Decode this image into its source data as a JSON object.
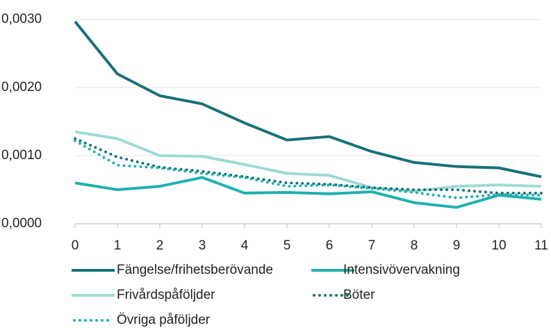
{
  "chart_data": {
    "type": "line",
    "x": [
      0,
      1,
      2,
      3,
      4,
      5,
      6,
      7,
      8,
      9,
      10,
      11
    ],
    "xlim": [
      0,
      11
    ],
    "xticks": [
      0,
      1,
      2,
      3,
      4,
      5,
      6,
      7,
      8,
      9,
      10,
      11
    ],
    "ylim": [
      0,
      0.003
    ],
    "yticks": [
      {
        "value": 0,
        "label": "0,0000"
      },
      {
        "value": 0.001,
        "label": "0,0010"
      },
      {
        "value": 0.002,
        "label": "0,0020"
      },
      {
        "value": 0.003,
        "label": "0,0030"
      }
    ],
    "grid": true,
    "legend": "bottom",
    "series": [
      {
        "name": "Fängelse/frihetsberövande",
        "color": "#17717a",
        "style": "solid",
        "values": [
          0.00297,
          0.0022,
          0.00188,
          0.00176,
          0.00148,
          0.00123,
          0.00128,
          0.00106,
          0.0009,
          0.00084,
          0.00082,
          0.00069
        ]
      },
      {
        "name": "Intensivövervakning",
        "color": "#1fb0b0",
        "style": "solid",
        "values": [
          0.0006,
          0.0005,
          0.00055,
          0.00068,
          0.00045,
          0.00046,
          0.00044,
          0.00047,
          0.00031,
          0.00024,
          0.00042,
          0.00036
        ]
      },
      {
        "name": "Frivårdspåföljder",
        "color": "#9fd9d6",
        "style": "solid",
        "values": [
          0.00135,
          0.00125,
          0.001,
          0.00099,
          0.00087,
          0.00074,
          0.00071,
          0.00053,
          0.00048,
          0.00055,
          0.00057,
          0.00055
        ]
      },
      {
        "name": "Böter",
        "color": "#17717a",
        "style": "dotted",
        "values": [
          0.00125,
          0.00098,
          0.00083,
          0.00077,
          0.00069,
          0.0006,
          0.00058,
          0.00053,
          0.0005,
          0.0005,
          0.00045,
          0.00045
        ]
      },
      {
        "name": "Övriga påföljder",
        "color": "#1fb0b0",
        "style": "dotted",
        "values": [
          0.00122,
          0.00086,
          0.00082,
          0.00074,
          0.00068,
          0.00055,
          0.00057,
          0.00052,
          0.00046,
          0.00038,
          0.00043,
          0.00042
        ]
      }
    ]
  }
}
